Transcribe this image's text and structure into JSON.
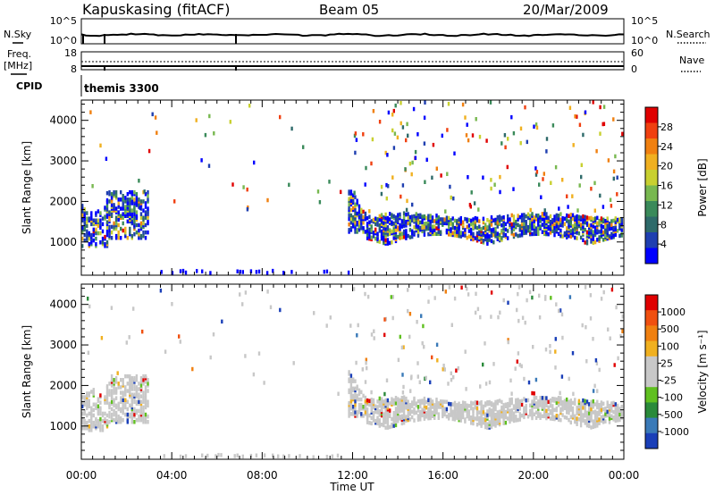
{
  "header": {
    "station": "Kapuskasing (fitACF)",
    "beam": "Beam 05",
    "date": "20/Mar/2009"
  },
  "noise_panel": {
    "left_label": "N.Sky",
    "right_label": "N.Search",
    "left_ticks": [
      "10^5",
      "10^0"
    ],
    "right_ticks": [
      "10^5",
      "10^0"
    ]
  },
  "freq_panel": {
    "left_label_line1": "Freq.",
    "left_label_line2": "[MHz]",
    "right_label": "Nave",
    "left_ticks": [
      "18",
      "8"
    ],
    "right_ticks": [
      "60",
      "0"
    ]
  },
  "cpid_panel": {
    "label": "CPID",
    "value": "themis 3300"
  },
  "x_axis": {
    "label": "Time UT",
    "ticks": [
      "00:00",
      "04:00",
      "08:00",
      "12:00",
      "16:00",
      "20:00",
      "00:00"
    ],
    "range_hours": [
      0,
      24
    ]
  },
  "power_panel": {
    "ylabel": "Slant Range [km]",
    "yticks": [
      "1000",
      "2000",
      "3000",
      "4000"
    ],
    "colorbar_label": "Power [dB]",
    "colorbar_ticks": [
      "28",
      "24",
      "20",
      "16",
      "12",
      "8",
      "4"
    ]
  },
  "velocity_panel": {
    "ylabel": "Slant Range [km]",
    "yticks": [
      "1000",
      "2000",
      "3000",
      "4000"
    ],
    "colorbar_label": "Velocity [m s⁻¹]",
    "colorbar_ticks": [
      "1000",
      "500",
      "100",
      "25",
      "-25",
      "-100",
      "-500",
      "-1000"
    ]
  },
  "colors": {
    "power_scale": [
      "#0000ff",
      "#1f3fb0",
      "#2e6a6a",
      "#3a8a5a",
      "#78b850",
      "#c8d030",
      "#f0b020",
      "#f08010",
      "#f04010",
      "#e00000"
    ],
    "velocity_scale": [
      "#1a3fb8",
      "#3a7ab8",
      "#2a8a3a",
      "#60c020",
      "#c8c8c8",
      "#c8c8c8",
      "#f0b020",
      "#f08010",
      "#f05010",
      "#e00000"
    ]
  },
  "chart_data": [
    {
      "type": "heatmap",
      "title": "Power",
      "xlabel": "Time UT",
      "ylabel": "Slant Range [km]",
      "xlim": [
        0,
        24
      ],
      "ylim": [
        180,
        4500
      ],
      "zlabel": "Power [dB]",
      "zlim": [
        0,
        32
      ],
      "features": [
        {
          "t_start": 0.0,
          "t_end": 1.2,
          "range_lo": 950,
          "range_hi": 1750,
          "level_db": 16
        },
        {
          "t_start": 1.0,
          "t_end": 3.0,
          "range_lo": 1200,
          "range_hi": 2300,
          "level_db": 12
        },
        {
          "t_start": 11.8,
          "t_end": 12.6,
          "range_lo": 1300,
          "range_hi": 2400,
          "level_db": 14
        },
        {
          "t_start": 12.6,
          "t_end": 24.0,
          "range_lo": 1000,
          "range_hi": 1700,
          "level_db": 12
        }
      ]
    },
    {
      "type": "heatmap",
      "title": "Velocity",
      "xlabel": "Time UT",
      "ylabel": "Slant Range [km]",
      "xlim": [
        0,
        24
      ],
      "ylim": [
        180,
        4500
      ],
      "zlabel": "Velocity [m s⁻¹]",
      "zlim": [
        -1000,
        1000
      ],
      "features": [
        {
          "t_start": 0.0,
          "t_end": 3.0,
          "range_lo": 950,
          "range_hi": 2300,
          "velocity": 0
        },
        {
          "t_start": 11.8,
          "t_end": 24.0,
          "range_lo": 1000,
          "range_hi": 2400,
          "velocity": 0
        }
      ]
    }
  ]
}
